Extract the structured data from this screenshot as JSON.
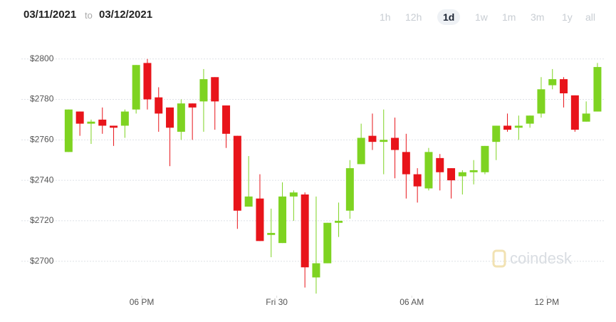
{
  "header": {
    "from": "03/11/2021",
    "to_word": "to",
    "to": "03/12/2021",
    "ranges": [
      "1h",
      "12h",
      "1d",
      "1w",
      "1m",
      "3m",
      "1y",
      "all"
    ],
    "selected_range": 2
  },
  "watermark": "coindesk",
  "chart_data": {
    "type": "candlestick",
    "x": [
      14.75,
      15.25,
      15.75,
      16.25,
      16.75,
      17.25,
      17.75,
      18.25,
      18.75,
      19.25,
      19.75,
      20.25,
      20.75,
      21.25,
      21.75,
      22.25,
      22.75,
      23.25,
      23.75,
      24.25,
      24.75,
      25.25,
      25.75,
      26.25,
      26.75,
      27.25,
      27.75,
      28.25,
      28.75,
      29.25,
      29.75,
      30.25,
      30.75,
      31.25,
      31.75,
      32.25,
      32.75,
      33.25,
      33.75,
      34.25,
      34.75,
      35.25,
      35.75,
      36.25,
      36.75,
      37.25,
      37.75,
      38.25
    ],
    "open": [
      2754,
      2774,
      2768,
      2770,
      2767,
      2767,
      2775,
      2798,
      2781,
      2776,
      2764,
      2778,
      2779,
      2791,
      2777,
      2762,
      2727,
      2731,
      2713,
      2709,
      2732,
      2733,
      2692,
      2699,
      2719,
      2725,
      2748,
      2762,
      2759,
      2761,
      2754,
      2743,
      2736,
      2751,
      2746,
      2742,
      2744,
      2744,
      2759,
      2767,
      2766,
      2768,
      2773,
      2787,
      2790,
      2782,
      2769,
      2774
    ],
    "high": [
      2775,
      2774,
      2770,
      2776,
      2767,
      2775,
      2797,
      2800,
      2786,
      2776,
      2780,
      2778,
      2795,
      2791,
      2777,
      2762,
      2752,
      2743,
      2726,
      2739,
      2735,
      2734,
      2732,
      2719,
      2729,
      2750,
      2768,
      2773,
      2775,
      2771,
      2763,
      2746,
      2756,
      2753,
      2746,
      2745,
      2750,
      2757,
      2767,
      2773,
      2772,
      2772,
      2791,
      2795,
      2791,
      2782,
      2779,
      2798
    ],
    "low": [
      2754,
      2762,
      2758,
      2763,
      2757,
      2761,
      2773,
      2775,
      2764,
      2747,
      2760,
      2760,
      2764,
      2765,
      2756,
      2716,
      2727,
      2710,
      2702,
      2709,
      2720,
      2687,
      2684,
      2699,
      2712,
      2721,
      2748,
      2755,
      2743,
      2741,
      2731,
      2729,
      2735,
      2735,
      2731,
      2733,
      2738,
      2743,
      2750,
      2764,
      2760,
      2766,
      2771,
      2785,
      2776,
      2764,
      2769,
      2774
    ],
    "close": [
      2775,
      2768,
      2769,
      2767,
      2766,
      2774,
      2797,
      2780,
      2773,
      2766,
      2778,
      2776,
      2790,
      2779,
      2763,
      2725,
      2732,
      2710,
      2714,
      2732,
      2734,
      2697,
      2699,
      2719,
      2720,
      2746,
      2761,
      2759,
      2760,
      2755,
      2743,
      2737,
      2754,
      2744,
      2740,
      2744,
      2745,
      2757,
      2767,
      2765,
      2767,
      2772,
      2785,
      2790,
      2783,
      2765,
      2773,
      2796
    ],
    "up_color": "#7ed321",
    "down_color": "#e8141a",
    "xlim": [
      12.65,
      38.6
    ],
    "xticks": [
      {
        "value": 18,
        "label": "06 PM"
      },
      {
        "value": 24,
        "label": "Fri 30"
      },
      {
        "value": 30,
        "label": "06 AM"
      },
      {
        "value": 36,
        "label": "12 PM"
      }
    ],
    "ylim": [
      2683,
      2808
    ],
    "yticks": [
      {
        "value": 2700,
        "label": "$2700"
      },
      {
        "value": 2720,
        "label": "$2720"
      },
      {
        "value": 2740,
        "label": "$2740"
      },
      {
        "value": 2760,
        "label": "$2760"
      },
      {
        "value": 2780,
        "label": "$2780"
      },
      {
        "value": 2800,
        "label": "$2800"
      }
    ],
    "grid": true
  }
}
